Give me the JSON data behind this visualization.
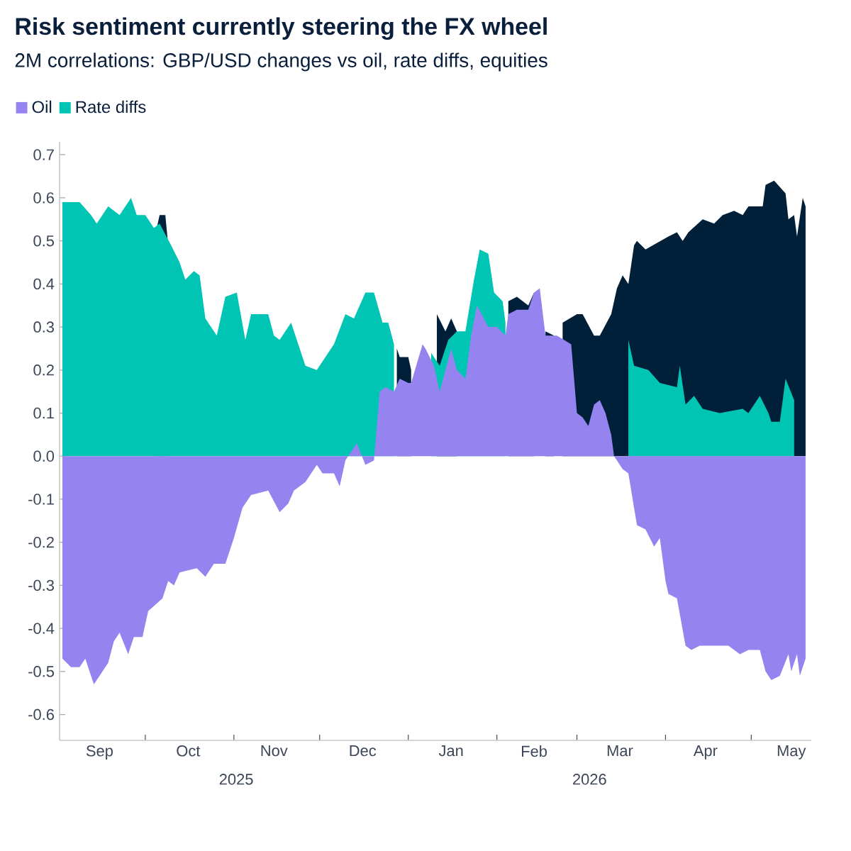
{
  "chart_data": {
    "type": "area",
    "title": "Risk sentiment currently steering the FX wheel",
    "subtitle": "2M correlations: GBP/USD changes vs oil, rate diffs, equities",
    "legend": "top left",
    "xlim": [
      "2025-09-01",
      "2026-05-22"
    ],
    "xticks": [
      {
        "value": "2025-09-15",
        "label": "Sep"
      },
      {
        "value": "2025-10-01",
        "label": null
      },
      {
        "value": "2025-10-16",
        "label": "Oct"
      },
      {
        "value": "2025-11-01",
        "label": null
      },
      {
        "value": "2025-11-15",
        "label": "Nov"
      },
      {
        "value": "2025-12-01",
        "label": null
      },
      {
        "value": "2025-12-16",
        "label": "Dec"
      },
      {
        "value": "2026-01-01",
        "label": null
      },
      {
        "value": "2026-01-16",
        "label": "Jan"
      },
      {
        "value": "2026-02-01",
        "label": null
      },
      {
        "value": "2026-02-14",
        "label": "Feb"
      },
      {
        "value": "2026-03-01",
        "label": null
      },
      {
        "value": "2026-03-16",
        "label": "Mar"
      },
      {
        "value": "2026-04-01",
        "label": null
      },
      {
        "value": "2026-04-15",
        "label": "Apr"
      },
      {
        "value": "2026-05-01",
        "label": null
      },
      {
        "value": "2026-05-15",
        "label": "May"
      }
    ],
    "ylim": [
      -0.66,
      0.73
    ],
    "yticks": [
      -0.6,
      -0.5,
      -0.4,
      -0.3,
      -0.2,
      -0.1,
      {
        "value": 0,
        "label": "0.0"
      },
      0.1,
      0.2,
      0.3,
      0.4,
      0.5,
      0.6,
      0.7
    ],
    "annotations": [
      "2025",
      "2026"
    ],
    "series": [
      {
        "name": "Oil",
        "color": "#9584f0",
        "x": [
          "2025-09-02",
          "2025-09-05",
          "2025-09-08",
          "2025-09-10",
          "2025-09-13",
          "2025-09-14",
          "2025-09-18",
          "2025-09-20",
          "2025-09-22",
          "2025-09-25",
          "2025-09-27",
          "2025-09-30",
          "2025-10-02",
          "2025-10-07",
          "2025-10-09",
          "2025-10-11",
          "2025-10-13",
          "2025-10-19",
          "2025-10-22",
          "2025-10-25",
          "2025-10-29",
          "2025-11-01",
          "2025-11-04",
          "2025-11-07",
          "2025-11-13",
          "2025-11-17",
          "2025-11-20",
          "2025-11-22",
          "2025-11-26",
          "2025-11-30",
          "2025-12-02",
          "2025-12-04",
          "2025-12-06",
          "2025-12-08",
          "2025-12-10",
          "2025-12-13",
          "2025-12-14",
          "2025-12-17",
          "2025-12-20",
          "2025-12-22",
          "2025-12-24",
          "2025-12-27",
          "2025-12-29",
          "2026-01-01",
          "2026-01-02",
          "2026-01-06",
          "2026-01-07",
          "2026-01-10",
          "2026-01-12",
          "2026-01-16",
          "2026-01-18",
          "2026-01-21",
          "2026-01-23",
          "2026-01-25",
          "2026-01-29",
          "2026-02-01",
          "2026-02-04",
          "2026-02-05",
          "2026-02-08",
          "2026-02-12",
          "2026-02-14",
          "2026-02-16",
          "2026-02-18",
          "2026-02-22",
          "2026-02-27",
          "2026-03-01",
          "2026-03-03",
          "2026-03-05",
          "2026-03-07",
          "2026-03-09",
          "2026-03-11",
          "2026-03-13",
          "2026-03-14",
          "2026-03-17",
          "2026-03-19",
          "2026-03-22",
          "2026-03-25",
          "2026-03-28",
          "2026-03-30",
          "2026-04-01",
          "2026-04-02",
          "2026-04-05",
          "2026-04-08",
          "2026-04-10",
          "2026-04-13",
          "2026-04-17",
          "2026-04-23",
          "2026-04-27",
          "2026-04-30",
          "2026-05-04",
          "2026-05-06",
          "2026-05-08",
          "2026-05-11",
          "2026-05-14",
          "2026-05-15",
          "2026-05-17",
          "2026-05-18",
          "2026-05-20"
        ],
        "values": [
          -0.47,
          -0.49,
          -0.49,
          -0.47,
          -0.53,
          -0.52,
          -0.48,
          -0.43,
          -0.41,
          -0.46,
          -0.42,
          -0.42,
          -0.36,
          -0.33,
          -0.29,
          -0.3,
          -0.27,
          -0.26,
          -0.28,
          -0.25,
          -0.25,
          -0.19,
          -0.12,
          -0.09,
          -0.08,
          -0.13,
          -0.11,
          -0.08,
          -0.06,
          -0.02,
          -0.04,
          -0.04,
          -0.04,
          -0.07,
          -0.01,
          0.02,
          0.03,
          -0.02,
          -0.01,
          0.15,
          0.16,
          0.15,
          0.18,
          0.17,
          0.17,
          0.26,
          0.25,
          0.21,
          0.15,
          0.25,
          0.2,
          0.18,
          0.28,
          0.35,
          0.3,
          0.3,
          0.28,
          0.33,
          0.34,
          0.34,
          0.38,
          0.39,
          0.28,
          0.28,
          0.26,
          0.1,
          0.09,
          0.07,
          0.12,
          0.13,
          0.1,
          0.05,
          0,
          -0.03,
          -0.04,
          -0.16,
          -0.17,
          -0.21,
          -0.19,
          -0.29,
          -0.32,
          -0.33,
          -0.44,
          -0.45,
          -0.44,
          -0.44,
          -0.44,
          -0.46,
          -0.45,
          -0.45,
          -0.5,
          -0.52,
          -0.51,
          -0.46,
          -0.5,
          -0.46,
          -0.51,
          -0.47
        ]
      },
      {
        "name": "Rate diffs",
        "color": "#00c5b5",
        "x": [
          "2025-09-02",
          "2025-09-08",
          "2025-09-12",
          "2025-09-14",
          "2025-09-18",
          "2025-09-22",
          "2025-09-26",
          "2025-09-28",
          "2025-10-01",
          "2025-10-04",
          "2025-10-06",
          "2025-10-10",
          "2025-10-13",
          "2025-10-15",
          "2025-10-18",
          "2025-10-20",
          "2025-10-22",
          "2025-10-26",
          "2025-10-29",
          "2025-11-02",
          "2025-11-05",
          "2025-11-07",
          "2025-11-13",
          "2025-11-15",
          "2025-11-17",
          "2025-11-21",
          "2025-11-26",
          "2025-11-30",
          "2025-12-04",
          "2025-12-06",
          "2025-12-10",
          "2025-12-13",
          "2025-12-17",
          "2025-12-20",
          "2025-12-23",
          "2025-12-25",
          "2025-12-27",
          "2025-12-30",
          "2026-01-03",
          "2026-01-06",
          "2026-01-09",
          "2026-01-12",
          "2026-01-15",
          "2026-01-18",
          "2026-01-21",
          "2026-01-24",
          "2026-01-26",
          "2026-01-29",
          "2026-01-31",
          "2026-02-03",
          "2026-02-04",
          "2026-03-01",
          "2026-03-19",
          "2026-03-21",
          "2026-03-26",
          "2026-03-30",
          "2026-04-05",
          "2026-04-06",
          "2026-04-08",
          "2026-04-11",
          "2026-04-14",
          "2026-04-20",
          "2026-04-28",
          "2026-04-30",
          "2026-05-04",
          "2026-05-07",
          "2026-05-08",
          "2026-05-11",
          "2026-05-13",
          "2026-05-16"
        ],
        "values": [
          0.59,
          0.59,
          0.56,
          0.54,
          0.58,
          0.56,
          0.6,
          0.56,
          0.56,
          0.53,
          0.54,
          0.49,
          0.45,
          0.41,
          0.43,
          0.42,
          0.32,
          0.28,
          0.37,
          0.38,
          0.27,
          0.33,
          0.33,
          0.28,
          0.27,
          0.31,
          0.21,
          0.2,
          0.24,
          0.26,
          0.33,
          0.32,
          0.38,
          0.38,
          0.31,
          0.31,
          0.26,
          null,
          null,
          null,
          0.24,
          0.21,
          0.27,
          0.29,
          0.29,
          0.41,
          0.48,
          0.47,
          0.38,
          0.36,
          0.31,
          null,
          0.27,
          0.21,
          0.2,
          0.17,
          0.16,
          0.21,
          0.12,
          0.14,
          0.11,
          0.1,
          0.11,
          0.1,
          0.14,
          0.1,
          0.08,
          0.08,
          0.18,
          0.13
        ]
      },
      {
        "color": "#00203a",
        "x": [
          "2025-10-05",
          "2025-10-06",
          "2025-10-08",
          "2025-10-09",
          "2025-10-20",
          "2025-12-28",
          "2025-12-29",
          "2026-01-01",
          "2026-01-02",
          "2026-01-05",
          "2026-01-11",
          "2026-01-14",
          "2026-01-16",
          "2026-01-18",
          "2026-01-20",
          "2026-02-05",
          "2026-02-08",
          "2026-02-12",
          "2026-02-14",
          "2026-02-16",
          "2026-02-18",
          "2026-02-21",
          "2026-02-23",
          "2026-02-24",
          "2026-03-01",
          "2026-03-03",
          "2026-03-07",
          "2026-03-09",
          "2026-03-13",
          "2026-03-15",
          "2026-03-17",
          "2026-03-19",
          "2026-03-21",
          "2026-03-22",
          "2026-03-25",
          "2026-04-02",
          "2026-04-05",
          "2026-04-07",
          "2026-04-09",
          "2026-04-14",
          "2026-04-18",
          "2026-04-21",
          "2026-04-25",
          "2026-04-28",
          "2026-04-30",
          "2026-05-05",
          "2026-05-06",
          "2026-05-09",
          "2026-05-13",
          "2026-05-14",
          "2026-05-16",
          "2026-05-17",
          "2026-05-19",
          "2026-05-20"
        ],
        "values": [
          0.53,
          0.56,
          0.56,
          0.49,
          null,
          0.25,
          0.23,
          0.23,
          0.2,
          null,
          0.33,
          0.29,
          0.32,
          0.29,
          null,
          0.36,
          0.37,
          0.35,
          0.38,
          null,
          0.29,
          0.28,
          null,
          0.31,
          0.33,
          0.33,
          0.28,
          0.28,
          0.33,
          0.39,
          0.42,
          0.4,
          0.49,
          0.5,
          0.48,
          0.51,
          0.52,
          0.5,
          0.52,
          0.55,
          0.54,
          0.56,
          0.57,
          0.56,
          0.58,
          0.58,
          0.63,
          0.64,
          0.61,
          0.55,
          0.56,
          0.51,
          0.6,
          0.58
        ]
      }
    ]
  }
}
